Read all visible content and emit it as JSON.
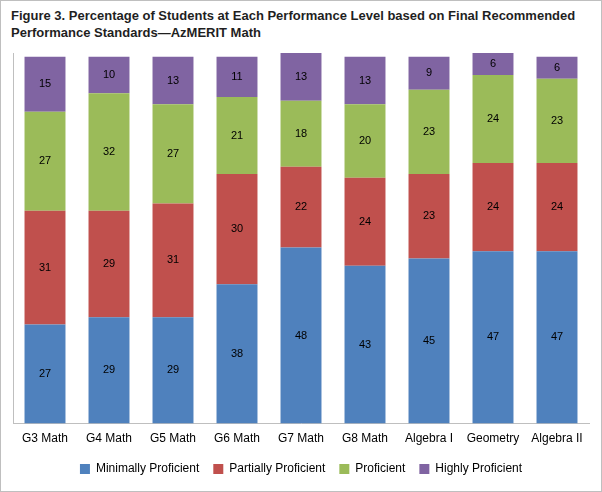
{
  "chart_data": {
    "type": "bar",
    "title": "Figure 3. Percentage of Students at Each Performance Level based on Final Recommended Performance Standards—AzMERIT Math",
    "categories": [
      "G3 Math",
      "G4 Math",
      "G5 Math",
      "G6 Math",
      "G7 Math",
      "G8 Math",
      "Algebra I",
      "Geometry",
      "Algebra II"
    ],
    "series": [
      {
        "name": "Minimally Proficient",
        "color": "#4f81bd",
        "values": [
          27,
          29,
          29,
          38,
          48,
          43,
          45,
          47,
          47
        ]
      },
      {
        "name": "Partially Proficient",
        "color": "#c0504d",
        "values": [
          31,
          29,
          31,
          30,
          22,
          24,
          23,
          24,
          24
        ]
      },
      {
        "name": "Proficient",
        "color": "#9bbb59",
        "values": [
          27,
          32,
          27,
          21,
          18,
          20,
          23,
          24,
          23
        ]
      },
      {
        "name": "Highly Proficient",
        "color": "#8064a2",
        "values": [
          15,
          10,
          13,
          11,
          13,
          13,
          9,
          6,
          6
        ]
      }
    ],
    "ylim": [
      0,
      101
    ],
    "stacked": true,
    "data_labels": true,
    "legend": "bottom",
    "grid": false,
    "tick_labels": "x"
  }
}
